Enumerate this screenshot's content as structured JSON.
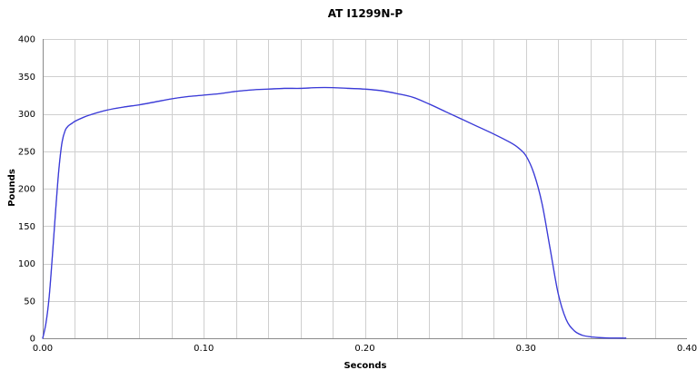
{
  "chart_data": {
    "type": "line",
    "title": "AT I1299N-P",
    "xlabel": "Seconds",
    "ylabel": "Pounds",
    "xlim": [
      0,
      0.4
    ],
    "ylim": [
      0,
      400
    ],
    "x_ticks": [
      "0.00",
      "0.10",
      "0.20",
      "0.30",
      "0.40"
    ],
    "y_ticks": [
      "0",
      "50",
      "100",
      "150",
      "200",
      "250",
      "300",
      "350",
      "400"
    ],
    "grid": true,
    "legend": "none",
    "series": [
      {
        "color": "#3a3ad8",
        "x": [
          0.0,
          0.002,
          0.004,
          0.006,
          0.008,
          0.01,
          0.012,
          0.014,
          0.016,
          0.018,
          0.02,
          0.025,
          0.03,
          0.04,
          0.05,
          0.06,
          0.07,
          0.08,
          0.09,
          0.1,
          0.11,
          0.12,
          0.13,
          0.14,
          0.15,
          0.16,
          0.17,
          0.18,
          0.19,
          0.2,
          0.21,
          0.22,
          0.23,
          0.24,
          0.25,
          0.26,
          0.27,
          0.28,
          0.29,
          0.295,
          0.3,
          0.305,
          0.31,
          0.315,
          0.32,
          0.325,
          0.33,
          0.335,
          0.34,
          0.345,
          0.35,
          0.355,
          0.36,
          0.362
        ],
        "y": [
          0,
          20,
          55,
          110,
          170,
          225,
          262,
          278,
          284,
          287,
          290,
          295,
          299,
          305,
          309,
          312,
          316,
          320,
          323,
          325,
          327,
          330,
          332,
          333,
          334,
          334,
          335,
          335,
          334,
          333,
          331,
          327,
          322,
          313,
          303,
          293,
          283,
          273,
          262,
          255,
          244,
          220,
          180,
          120,
          60,
          25,
          10,
          4,
          2,
          1,
          0.5,
          0.3,
          0.2,
          0.2
        ]
      }
    ]
  }
}
